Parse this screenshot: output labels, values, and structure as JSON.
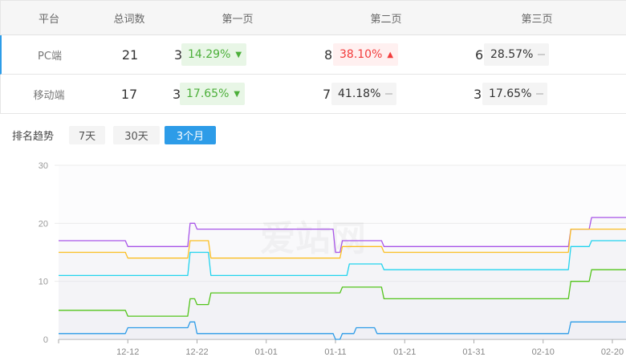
{
  "table": {
    "headers": [
      "平台",
      "总词数",
      "第一页",
      "第二页",
      "第三页"
    ],
    "rows": [
      {
        "platform": "PC端",
        "total": "21",
        "pages": [
          {
            "count": "3",
            "pct": "14.29%",
            "trend": "down"
          },
          {
            "count": "8",
            "pct": "38.10%",
            "trend": "up"
          },
          {
            "count": "6",
            "pct": "28.57%",
            "trend": "flat"
          }
        ]
      },
      {
        "platform": "移动端",
        "total": "17",
        "pages": [
          {
            "count": "3",
            "pct": "17.65%",
            "trend": "down"
          },
          {
            "count": "7",
            "pct": "41.18%",
            "trend": "flat"
          },
          {
            "count": "3",
            "pct": "17.65%",
            "trend": "flat"
          }
        ]
      }
    ]
  },
  "trend": {
    "label": "排名趋势",
    "ranges": [
      "7天",
      "30天",
      "3个月"
    ],
    "selected": "3个月"
  },
  "watermark": "爱站网",
  "chart_data": {
    "type": "line",
    "ylim": [
      0,
      30
    ],
    "yticks": [
      "0",
      "10",
      "20",
      "30"
    ],
    "xticks": [
      "12-12",
      "12-22",
      "01-01",
      "01-11",
      "01-21",
      "01-31",
      "02-10",
      "02-20"
    ],
    "x_range": [
      "12-02",
      "02-22"
    ],
    "grid": true,
    "step_runs_note": "values hold from each date until the next",
    "series": [
      {
        "color": "#a855e8",
        "runs": [
          [
            "12-02",
            17
          ],
          [
            "12-12",
            16
          ],
          [
            "12-21",
            20
          ],
          [
            "12-22",
            19
          ],
          [
            "01-11",
            15
          ],
          [
            "01-12",
            17
          ],
          [
            "01-18",
            16
          ],
          [
            "02-14",
            19
          ],
          [
            "02-17",
            21
          ]
        ]
      },
      {
        "color": "#fbbf24",
        "runs": [
          [
            "12-02",
            15
          ],
          [
            "12-12",
            14
          ],
          [
            "12-21",
            17
          ],
          [
            "12-24",
            14
          ],
          [
            "01-12",
            16
          ],
          [
            "01-18",
            15
          ],
          [
            "02-14",
            19
          ]
        ]
      },
      {
        "color": "#22d3ee",
        "runs": [
          [
            "12-02",
            11
          ],
          [
            "12-21",
            15
          ],
          [
            "12-24",
            11
          ],
          [
            "01-13",
            13
          ],
          [
            "01-18",
            12
          ],
          [
            "02-14",
            16
          ],
          [
            "02-17",
            17
          ]
        ]
      },
      {
        "color": "#52c41a",
        "runs": [
          [
            "12-02",
            5
          ],
          [
            "12-12",
            4
          ],
          [
            "12-21",
            7
          ],
          [
            "12-22",
            6
          ],
          [
            "12-24",
            8
          ],
          [
            "01-12",
            9
          ],
          [
            "01-18",
            7
          ],
          [
            "02-14",
            10
          ],
          [
            "02-17",
            12
          ]
        ]
      },
      {
        "color": "#2d9ce8",
        "runs": [
          [
            "12-02",
            1
          ],
          [
            "12-12",
            2
          ],
          [
            "12-21",
            3
          ],
          [
            "12-22",
            1
          ],
          [
            "01-11",
            0
          ],
          [
            "01-12",
            1
          ],
          [
            "01-14",
            2
          ],
          [
            "01-17",
            1
          ],
          [
            "02-14",
            3
          ]
        ]
      }
    ]
  }
}
